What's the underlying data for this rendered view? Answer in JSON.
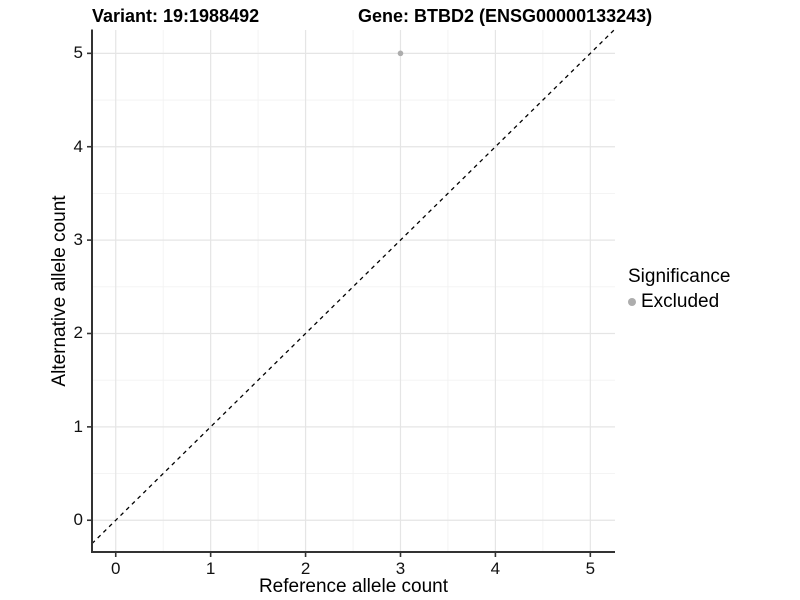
{
  "header": {
    "variant_title": "Variant: 19:1988492",
    "gene_title": "Gene: BTBD2 (ENSG00000133243)"
  },
  "chart_data": {
    "type": "scatter",
    "title": "Variant: 19:1988492   Gene: BTBD2 (ENSG00000133243)",
    "xlabel": "Reference allele count",
    "ylabel": "Alternative allele count",
    "xlim": [
      -0.25,
      5.26
    ],
    "ylim": [
      -0.34,
      5.25
    ],
    "x_ticks": [
      0,
      1,
      2,
      3,
      4,
      5
    ],
    "y_ticks": [
      0,
      1,
      2,
      3,
      4,
      5
    ],
    "grid": "major+minor",
    "points": [
      {
        "x": 3,
        "y": 5,
        "series": "Excluded"
      }
    ],
    "reference_line": {
      "type": "identity",
      "slope": 1,
      "intercept": 0,
      "style": "dashed",
      "color": "#000000"
    },
    "legend": {
      "title": "Significance",
      "position": "right",
      "items": [
        {
          "label": "Excluded",
          "color": "#ADADAD"
        }
      ]
    },
    "colors": {
      "point": "#ADADAD",
      "grid_major": "#E5E5E5",
      "grid_minor": "#F2F2F2",
      "axis_line": "#333333",
      "tick_mark": "#333333",
      "background": "#FFFFFF"
    }
  }
}
